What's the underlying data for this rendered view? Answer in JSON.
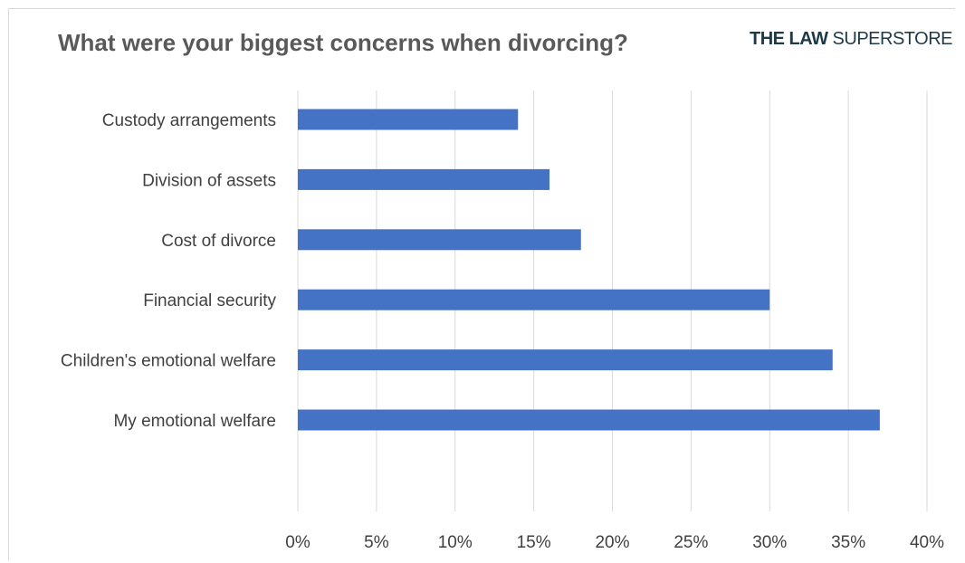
{
  "chart_data": {
    "type": "bar",
    "orientation": "horizontal",
    "title": "What were your biggest concerns when divorcing?",
    "categories": [
      "Custody arrangements",
      "Division of assets",
      "Cost of divorce",
      "Financial security",
      "Children's emotional welfare",
      "My emotional welfare"
    ],
    "values": [
      14,
      16,
      18,
      30,
      34,
      37
    ],
    "xlim": [
      0,
      40
    ],
    "x_ticks": [
      0,
      5,
      10,
      15,
      20,
      25,
      30,
      35,
      40
    ],
    "x_tick_labels": [
      "0%",
      "5%",
      "10%",
      "15%",
      "20%",
      "25%",
      "30%",
      "35%",
      "40%"
    ],
    "xlabel": "",
    "ylabel": "",
    "grid": "vertical",
    "legend": "none",
    "bar_color": "#4472c4"
  },
  "brand": {
    "part1": "THE LAW",
    "part2": "SUPERSTORE"
  }
}
